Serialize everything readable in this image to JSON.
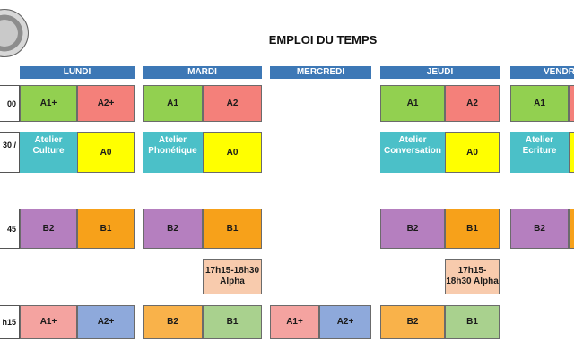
{
  "title": "EMPLOI DU TEMPS",
  "days": [
    "LUNDI",
    "MARDI",
    "MERCREDI",
    "JEUDI",
    "VENDREDI"
  ],
  "times": [
    "00",
    "30 /",
    "45",
    "h15"
  ],
  "colors": {
    "header": "#3d78b6",
    "green": "#92d050",
    "salmon": "#f4807a",
    "teal": "#4bc0c8",
    "yellow": "#ffff00",
    "purple": "#b57fbf",
    "orange": "#f7a11a",
    "peach": "#f8cbad",
    "pink": "#f4a3a0",
    "blue": "#8ea9db",
    "light_green": "#a9d18e",
    "light_orange": "#f9b24a"
  },
  "cells": {
    "lundi": {
      "r1a": "A1+",
      "r1b": "A2+",
      "r2a": "Atelier\nCulture",
      "r2b": "A0",
      "r3a": "B2",
      "r3b": "B1",
      "r5a": "A1+",
      "r5b": "A2+"
    },
    "mardi": {
      "r1a": "A1",
      "r1b": "A2",
      "r2a": "Atelier\nPhonétique",
      "r2b": "A0",
      "r3a": "B2",
      "r3b": "B1",
      "r4b": "17h15-18h30\nAlpha",
      "r5a": "B2",
      "r5b": "B1"
    },
    "mercredi": {
      "r5a": "A1+",
      "r5b": "A2+"
    },
    "jeudi": {
      "r1a": "A1",
      "r1b": "A2",
      "r2a": "Atelier\nConversation",
      "r2b": "A0",
      "r3a": "B2",
      "r3b": "B1",
      "r4b": "17h15-\n18h30 Alpha",
      "r5a": "B2",
      "r5b": "B1"
    },
    "vendredi": {
      "r1a": "A1",
      "r2a": "Atelier\nEcriture",
      "r3a": "B2"
    }
  }
}
